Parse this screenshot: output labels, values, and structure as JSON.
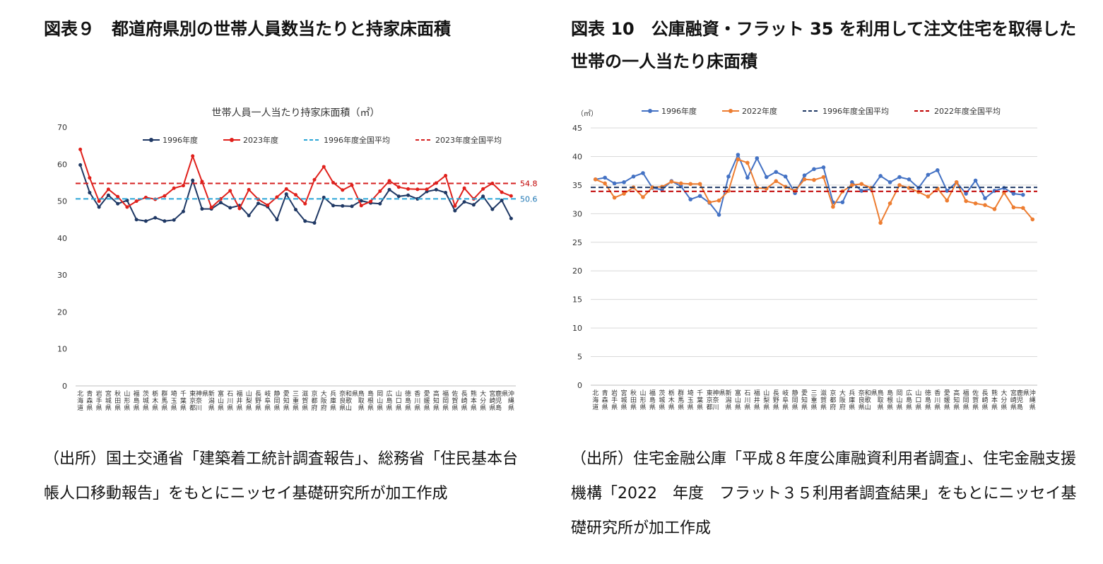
{
  "panels": [
    {
      "figure_title": "図表９　都道府県別の世帯人員数当たりと持家床面積",
      "source": "（出所）国土交通省「建築着工統計調査報告」、総務省「住民基本台帳人口移動報告」をもとにニッセイ基礎研究所が加工作成"
    },
    {
      "figure_title": "図表 10　公庫融資・フラット 35 を利用して注文住宅を取得した世帯の一人当たり床面積",
      "source": "（出所）住宅金融公庫「平成８年度公庫融資利用者調査」、住宅金融支援機構「2022　年度　フラット３５利用者調査結果」をもとにニッセイ基礎研究所が加工作成"
    }
  ],
  "chart_data": [
    {
      "type": "line",
      "title": "世帯人員一人当たり持家床面積（㎡）",
      "ylabel": "",
      "ylim": [
        0,
        70
      ],
      "yticks": [
        "0",
        "10",
        "20",
        "30",
        "40",
        "50",
        "60",
        "70"
      ],
      "grid": false,
      "legend": "top",
      "categories": [
        "北海道",
        "青森県",
        "岩手県",
        "宮城県",
        "秋田県",
        "山形県",
        "福島県",
        "茨城県",
        "栃木県",
        "群馬県",
        "埼玉県",
        "千葉県",
        "東京都",
        "神奈川県",
        "新潟県",
        "富山県",
        "石川県",
        "福井県",
        "山梨県",
        "長野県",
        "岐阜県",
        "静岡県",
        "愛知県",
        "三重県",
        "滋賀県",
        "京都府",
        "大阪府",
        "兵庫県",
        "奈良県",
        "和歌山県",
        "鳥取県",
        "島根県",
        "岡山県",
        "広島県",
        "山口県",
        "徳島県",
        "香川県",
        "愛媛県",
        "高知県",
        "福岡県",
        "佐賀県",
        "長崎県",
        "熊本県",
        "大分県",
        "宮崎県",
        "鹿児島県",
        "沖縄県"
      ],
      "series": [
        {
          "name": "1996年度",
          "color": "#1f3864",
          "values": [
            59.8,
            52.3,
            48.4,
            51.6,
            49.3,
            50.2,
            45.0,
            44.6,
            45.5,
            44.6,
            44.9,
            47.2,
            55.6,
            47.9,
            47.9,
            49.6,
            48.2,
            48.8,
            46.1,
            49.4,
            48.5,
            45.0,
            51.9,
            47.7,
            44.6,
            44.1,
            51.0,
            48.8,
            48.7,
            48.6,
            50.1,
            49.5,
            49.3,
            53.1,
            51.3,
            51.6,
            50.6,
            52.6,
            53.1,
            52.3,
            47.4,
            49.8,
            49.0,
            51.3,
            47.8,
            50.2,
            45.3
          ]
        },
        {
          "name": "2023年度",
          "color": "#e0201b",
          "values": [
            64.0,
            56.3,
            50.0,
            53.2,
            51.2,
            48.4,
            50.0,
            51.0,
            50.5,
            51.4,
            53.5,
            54.2,
            62.2,
            55.3,
            48.3,
            50.6,
            52.8,
            48.0,
            53.1,
            50.5,
            48.9,
            51.1,
            53.3,
            51.7,
            49.3,
            55.8,
            59.3,
            55.0,
            53.0,
            54.3,
            48.8,
            49.9,
            52.7,
            55.5,
            53.8,
            53.3,
            53.2,
            53.2,
            54.9,
            56.9,
            48.7,
            53.5,
            50.6,
            53.3,
            54.8,
            52.4,
            51.4
          ]
        },
        {
          "name": "1996年度全国平均",
          "color": "#2aa5d6",
          "dashed": true,
          "constant": 50.6
        },
        {
          "name": "2023年度全国平均",
          "color": "#d62020",
          "dashed": true,
          "constant": 54.8
        }
      ],
      "annotations": [
        {
          "text": "54.8",
          "color": "#c00000",
          "at": 54.8
        },
        {
          "text": "50.6",
          "color": "#1f77b4",
          "at": 50.6
        }
      ]
    },
    {
      "type": "line",
      "title": "",
      "unit_label": "（㎡）",
      "ylim": [
        0,
        45
      ],
      "yticks": [
        "0",
        "5",
        "10",
        "15",
        "20",
        "25",
        "30",
        "35",
        "40",
        "45"
      ],
      "grid": true,
      "legend": "top",
      "categories": [
        "北海道",
        "青森県",
        "岩手県",
        "宮城県",
        "秋田県",
        "山形県",
        "福島県",
        "茨城県",
        "栃木県",
        "群馬県",
        "埼玉県",
        "千葉県",
        "東京都",
        "神奈川県",
        "新潟県",
        "富山県",
        "石川県",
        "福井県",
        "山梨県",
        "長野県",
        "岐阜県",
        "静岡県",
        "愛知県",
        "三重県",
        "滋賀県",
        "京都府",
        "大阪府",
        "兵庫県",
        "奈良県",
        "和歌山県",
        "鳥取県",
        "島根県",
        "岡山県",
        "広島県",
        "山口県",
        "徳島県",
        "香川県",
        "愛媛県",
        "高知県",
        "福岡県",
        "佐賀県",
        "長崎県",
        "熊本県",
        "大分県",
        "宮崎県",
        "鹿児島県",
        "沖縄県"
      ],
      "series": [
        {
          "name": "1996年度",
          "color": "#4472c4",
          "values": [
            36.0,
            36.3,
            35.3,
            35.5,
            36.5,
            37.1,
            34.5,
            34.2,
            35.7,
            34.8,
            32.5,
            33.1,
            31.9,
            29.8,
            36.5,
            40.3,
            36.3,
            39.7,
            36.4,
            37.3,
            36.5,
            33.6,
            36.7,
            37.8,
            38.1,
            32.0,
            32.0,
            35.5,
            34.0,
            34.3,
            36.6,
            35.5,
            36.4,
            36.0,
            34.5,
            36.8,
            37.6,
            34.0,
            35.5,
            33.5,
            35.8,
            32.7,
            34.0,
            34.5,
            33.5,
            33.3,
            null
          ]
        },
        {
          "name": "2022年度",
          "color": "#ed7d31",
          "values": [
            36.0,
            35.3,
            32.8,
            33.5,
            34.6,
            32.9,
            34.6,
            34.7,
            35.6,
            35.3,
            35.2,
            35.2,
            32.0,
            32.3,
            34.0,
            39.5,
            38.9,
            34.5,
            34.4,
            35.7,
            34.7,
            34.0,
            36.0,
            35.9,
            36.4,
            31.2,
            33.9,
            35.0,
            35.2,
            34.5,
            28.4,
            31.8,
            35.0,
            34.5,
            33.8,
            33.0,
            34.4,
            32.3,
            35.5,
            32.2,
            31.8,
            31.5,
            30.8,
            33.7,
            31.1,
            31.0,
            29.0
          ]
        },
        {
          "name": "1996年度全国平均",
          "color": "#1f3864",
          "dashed": true,
          "constant": 34.6
        },
        {
          "name": "2022年度全国平均",
          "color": "#c00000",
          "dashed": true,
          "constant": 33.9
        }
      ]
    }
  ]
}
